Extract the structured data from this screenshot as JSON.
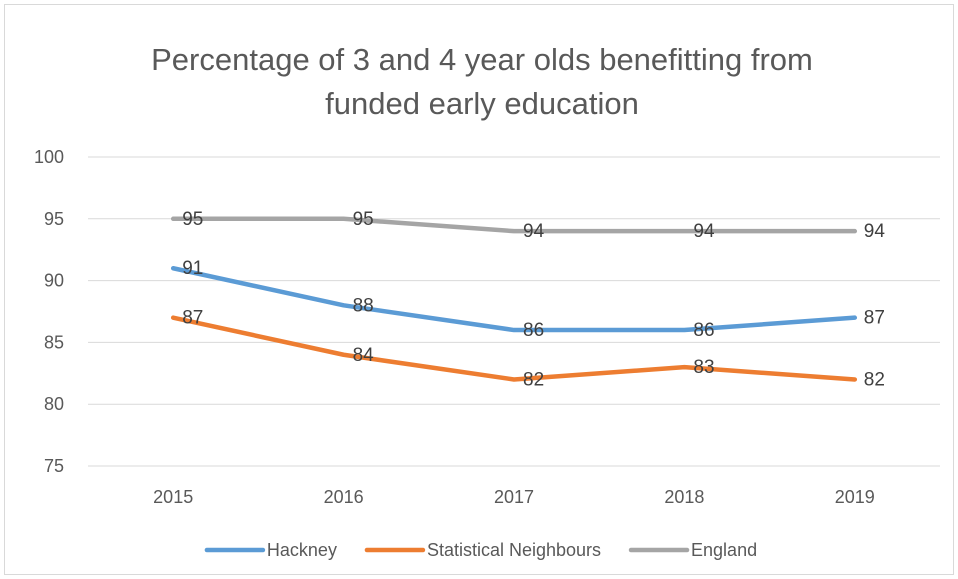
{
  "chart_data": {
    "type": "line",
    "title_lines": [
      "Percentage of 3 and 4 year olds benefitting from",
      "funded early education"
    ],
    "categories": [
      "2015",
      "2016",
      "2017",
      "2018",
      "2019"
    ],
    "ylim": [
      75,
      100
    ],
    "yticks": [
      "75",
      "80",
      "85",
      "90",
      "95",
      "100"
    ],
    "grid": true,
    "legend_position": "bottom",
    "series": [
      {
        "name": "Hackney",
        "color": "#5b9bd5",
        "values": [
          91,
          88,
          86,
          86,
          87
        ]
      },
      {
        "name": "Statistical Neighbours",
        "color": "#ed7d31",
        "values": [
          87,
          84,
          82,
          83,
          82
        ]
      },
      {
        "name": "England",
        "color": "#a5a5a5",
        "values": [
          95,
          95,
          94,
          94,
          94
        ]
      }
    ]
  }
}
